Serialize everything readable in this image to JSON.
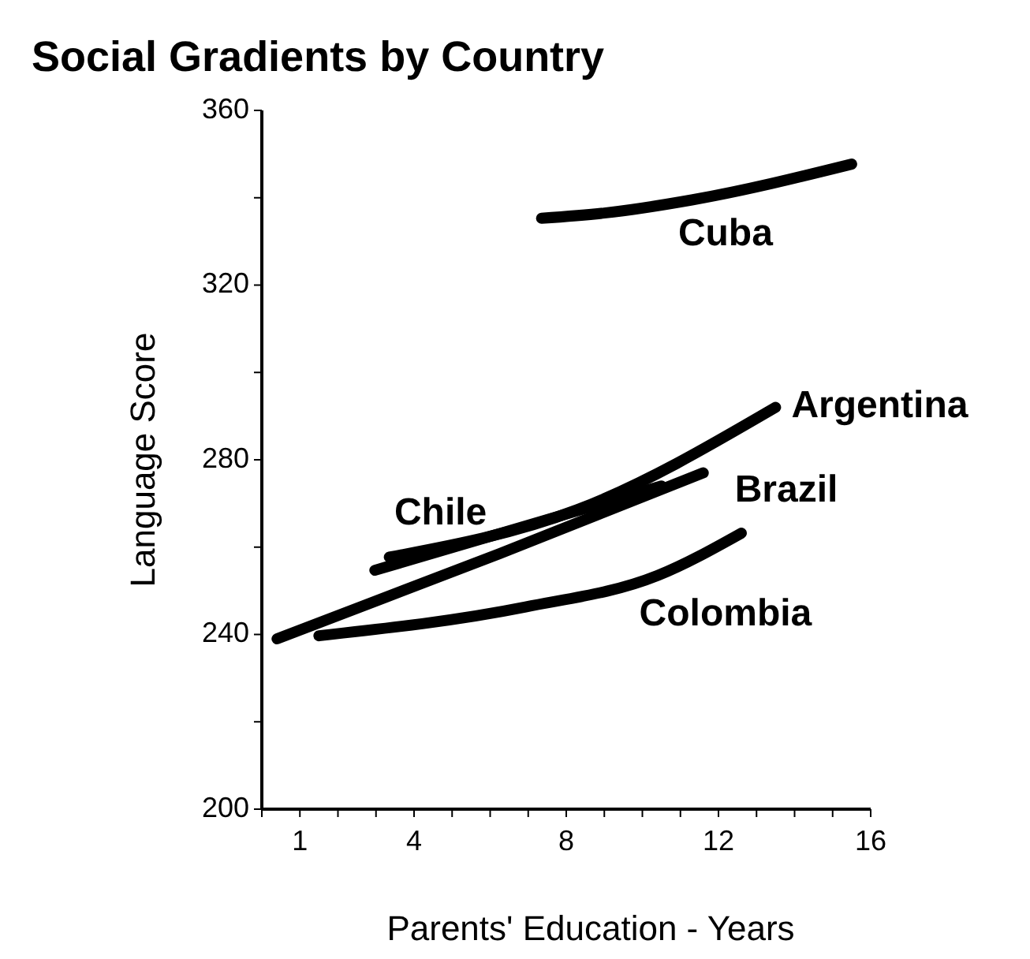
{
  "chart_data": {
    "type": "line",
    "title": "Social Gradients by Country",
    "xlabel": "Parents' Education - Years",
    "ylabel": "Language Score",
    "xlim": [
      0,
      16
    ],
    "xticks": [
      {
        "value": 0,
        "label": null
      },
      1,
      {
        "value": 2,
        "label": null
      },
      {
        "value": 3,
        "label": null
      },
      4,
      {
        "value": 5,
        "label": null
      },
      {
        "value": 6,
        "label": null
      },
      {
        "value": 7,
        "label": null
      },
      8,
      {
        "value": 9,
        "label": null
      },
      {
        "value": 10,
        "label": null
      },
      {
        "value": 11,
        "label": null
      },
      12,
      {
        "value": 13,
        "label": null
      },
      {
        "value": 14,
        "label": null
      },
      {
        "value": 15,
        "label": null
      },
      16
    ],
    "ylim": [
      200,
      360
    ],
    "yticks": [
      200,
      {
        "value": 220,
        "label": null
      },
      240,
      {
        "value": 260,
        "label": null
      },
      280,
      {
        "value": 300,
        "label": null
      },
      320,
      {
        "value": 340,
        "label": null
      },
      360
    ],
    "marker": "none",
    "line_style": "solid",
    "series": [
      {
        "name": "Cuba",
        "color": "#000000",
        "x": [
          7.35,
          9.0,
          11.3,
          15.5
        ],
        "values": [
          335.3,
          336.5,
          339.5,
          347.7
        ]
      },
      {
        "name": "Argentina",
        "color": "#000000",
        "x": [
          3.35,
          8.3,
          13.5
        ],
        "values": [
          257.7,
          268.6,
          292
        ]
      },
      {
        "name": "Chile",
        "color": "#000000",
        "x": [
          2.97,
          10.5
        ],
        "values": [
          254.7,
          274
        ]
      },
      {
        "name": "Brazil",
        "color": "#000000",
        "x": [
          0.4,
          6.25,
          11.6
        ],
        "values": [
          239,
          258.5,
          277
        ]
      },
      {
        "name": "Colombia",
        "color": "#000000",
        "x": [
          1.5,
          6.93,
          10.4,
          12.6
        ],
        "values": [
          239.7,
          246.3,
          253.5,
          263.2
        ]
      }
    ]
  }
}
